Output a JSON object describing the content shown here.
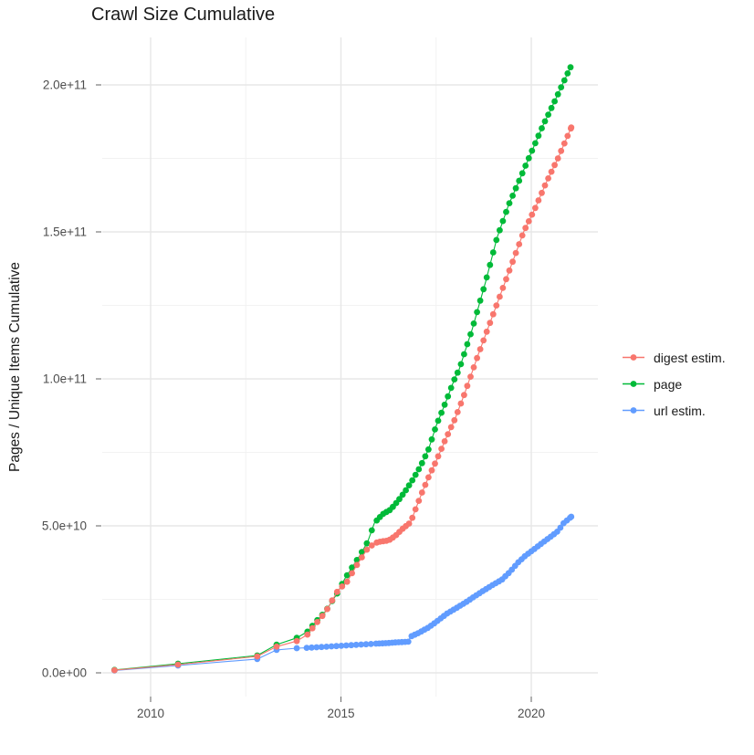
{
  "chart_data": {
    "type": "line",
    "marker": "point",
    "title": "Crawl Size Cumulative",
    "xlabel": "",
    "ylabel": "Pages / Unique Items Cumulative",
    "value_unit": "items, values stored in billions (1e9)",
    "x_ticks": {
      "values": [
        2010,
        2015,
        2020
      ],
      "labels": [
        "2010",
        "2015",
        "2020"
      ]
    },
    "x_minor": [
      2012.5,
      2017.5
    ],
    "y_ticks": {
      "values": [
        0,
        50,
        100,
        150,
        200
      ],
      "labels": [
        "0.0e+00",
        "5.0e+10",
        "1.0e+11",
        "1.5e+11",
        "2.0e+11"
      ]
    },
    "y_minor": [
      25,
      75,
      125,
      175
    ],
    "xlim": [
      2008.73,
      2021.76
    ],
    "ylim": [
      -8100000000,
      216200000000
    ],
    "grid": true,
    "legend_position": "right",
    "background": "#ffffff",
    "grid_color_major": "#e7e7e7",
    "grid_color_minor": "#f2f2f2",
    "series": [
      {
        "name": "digest estim.",
        "color": "#F8766D",
        "points": [
          [
            2009.05,
            0.9
          ],
          [
            2010.72,
            2.8
          ],
          [
            2012.8,
            5.6
          ],
          [
            2013.31,
            8.9
          ],
          [
            2013.84,
            10.8
          ],
          [
            2014.12,
            13.0
          ],
          [
            2014.35,
            16.8
          ],
          [
            2014.6,
            20.8
          ],
          [
            2014.92,
            28.0
          ],
          [
            2015.16,
            31.0
          ],
          [
            2015.4,
            36.3
          ],
          [
            2015.68,
            41.9
          ],
          [
            2015.88,
            44.1
          ],
          [
            2016.05,
            44.7
          ],
          [
            2016.25,
            45.0
          ],
          [
            2016.43,
            46.6
          ],
          [
            2016.6,
            48.8
          ],
          [
            2016.83,
            51.2
          ],
          [
            2017.0,
            57.0
          ],
          [
            2017.15,
            62.0
          ],
          [
            2017.33,
            67.4
          ],
          [
            2017.5,
            72.0
          ],
          [
            2017.75,
            79.5
          ],
          [
            2018.0,
            86.5
          ],
          [
            2018.25,
            95.0
          ],
          [
            2018.6,
            108.0
          ],
          [
            2019.0,
            122.0
          ],
          [
            2019.4,
            136.0
          ],
          [
            2019.8,
            150.0
          ],
          [
            2020.1,
            158.0
          ],
          [
            2020.4,
            167.0
          ],
          [
            2020.7,
            175.0
          ],
          [
            2021.05,
            185.5
          ]
        ]
      },
      {
        "name": "page",
        "color": "#00BA38",
        "points": [
          [
            2009.05,
            1.0
          ],
          [
            2010.72,
            3.1
          ],
          [
            2012.8,
            5.9
          ],
          [
            2013.31,
            9.6
          ],
          [
            2013.84,
            11.9
          ],
          [
            2014.12,
            14.0
          ],
          [
            2014.35,
            17.5
          ],
          [
            2014.6,
            21.0
          ],
          [
            2014.9,
            27.0
          ],
          [
            2015.1,
            32.0
          ],
          [
            2015.3,
            36.0
          ],
          [
            2015.5,
            40.0
          ],
          [
            2015.7,
            44.5
          ],
          [
            2015.88,
            51.0
          ],
          [
            2016.1,
            54.0
          ],
          [
            2016.3,
            55.5
          ],
          [
            2016.5,
            58.5
          ],
          [
            2016.7,
            62.0
          ],
          [
            2016.9,
            66.0
          ],
          [
            2017.1,
            70.5
          ],
          [
            2017.3,
            76.0
          ],
          [
            2017.5,
            84.0
          ],
          [
            2017.75,
            92.0
          ],
          [
            2018.0,
            100.5
          ],
          [
            2018.1,
            103.0
          ],
          [
            2018.45,
            117.0
          ],
          [
            2018.8,
            133.0
          ],
          [
            2019.1,
            148.0
          ],
          [
            2019.4,
            159.0
          ],
          [
            2019.7,
            168.0
          ],
          [
            2020.0,
            177.0
          ],
          [
            2020.3,
            186.0
          ],
          [
            2020.6,
            194.0
          ],
          [
            2020.85,
            201.0
          ],
          [
            2021.03,
            206.0
          ]
        ]
      },
      {
        "name": "url estim.",
        "color": "#619CFF",
        "points": [
          [
            2009.05,
            0.8
          ],
          [
            2010.72,
            2.5
          ],
          [
            2012.8,
            4.7
          ],
          [
            2013.31,
            7.8
          ],
          [
            2013.84,
            8.4
          ],
          [
            2014.1,
            8.5
          ],
          [
            2014.5,
            8.8
          ],
          [
            2015.0,
            9.2
          ],
          [
            2015.5,
            9.6
          ],
          [
            2015.88,
            9.9
          ],
          [
            2016.2,
            10.1
          ],
          [
            2016.5,
            10.4
          ],
          [
            2016.78,
            10.6
          ],
          [
            2016.82,
            12.3
          ],
          [
            2017.0,
            13.3
          ],
          [
            2017.31,
            15.5
          ],
          [
            2017.55,
            17.8
          ],
          [
            2017.79,
            20.2
          ],
          [
            2018.0,
            21.8
          ],
          [
            2018.27,
            23.9
          ],
          [
            2018.5,
            25.9
          ],
          [
            2018.75,
            28.0
          ],
          [
            2019.0,
            30.0
          ],
          [
            2019.23,
            31.7
          ],
          [
            2019.45,
            34.5
          ],
          [
            2019.65,
            37.5
          ],
          [
            2019.85,
            39.9
          ],
          [
            2020.1,
            42.3
          ],
          [
            2020.3,
            44.3
          ],
          [
            2020.5,
            46.2
          ],
          [
            2020.7,
            48.2
          ],
          [
            2020.85,
            50.9
          ],
          [
            2021.05,
            53.1
          ]
        ]
      }
    ],
    "render_hints": {
      "dense_from": 2014.05,
      "dense_split_year": 2015.9,
      "dot_step_years_early": 0.13,
      "dot_step_years": 0.085
    }
  }
}
